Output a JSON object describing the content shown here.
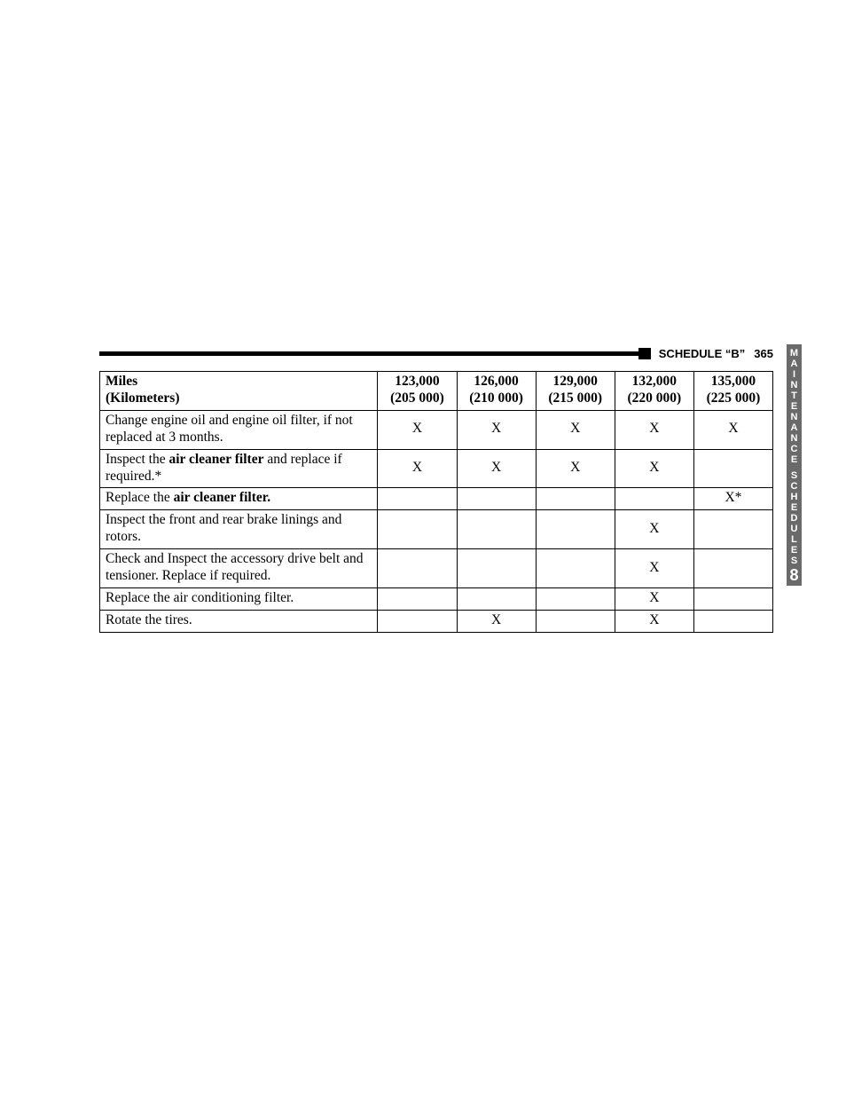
{
  "header": {
    "title_prefix": "SCHEDULE",
    "title_quote": "“B”",
    "page_number": "365"
  },
  "side_tab": {
    "line1": "MAINTENANCE",
    "line2": "SCHEDULES",
    "chapter": "8"
  },
  "table": {
    "header": {
      "miles_label": "Miles",
      "km_label": "(Kilometers)",
      "columns": [
        {
          "miles": "123,000",
          "km": "(205 000)"
        },
        {
          "miles": "126,000",
          "km": "(210 000)"
        },
        {
          "miles": "129,000",
          "km": "(215 000)"
        },
        {
          "miles": "132,000",
          "km": "(220 000)"
        },
        {
          "miles": "135,000",
          "km": "(225 000)"
        }
      ]
    },
    "rows": [
      {
        "desc_pre": "Change engine oil and engine oil filter, if not replaced at 3 months.",
        "bold": "",
        "desc_post": "",
        "marks": [
          "X",
          "X",
          "X",
          "X",
          "X"
        ]
      },
      {
        "desc_pre": "Inspect the ",
        "bold": "air cleaner filter",
        "desc_post": " and replace if required.*",
        "marks": [
          "X",
          "X",
          "X",
          "X",
          ""
        ]
      },
      {
        "desc_pre": "Replace the ",
        "bold": "air cleaner filter.",
        "desc_post": "",
        "marks": [
          "",
          "",
          "",
          "",
          "X*"
        ]
      },
      {
        "desc_pre": "Inspect the front and rear brake linings and rotors.",
        "bold": "",
        "desc_post": "",
        "marks": [
          "",
          "",
          "",
          "X",
          ""
        ]
      },
      {
        "desc_pre": "Check and Inspect the accessory drive belt and tensioner. Replace if required.",
        "bold": "",
        "desc_post": "",
        "marks": [
          "",
          "",
          "",
          "X",
          ""
        ]
      },
      {
        "desc_pre": "Replace the air conditioning filter.",
        "bold": "",
        "desc_post": "",
        "marks": [
          "",
          "",
          "",
          "X",
          ""
        ]
      },
      {
        "desc_pre": "Rotate the tires.",
        "bold": "",
        "desc_post": "",
        "marks": [
          "",
          "X",
          "",
          "X",
          ""
        ]
      }
    ]
  }
}
